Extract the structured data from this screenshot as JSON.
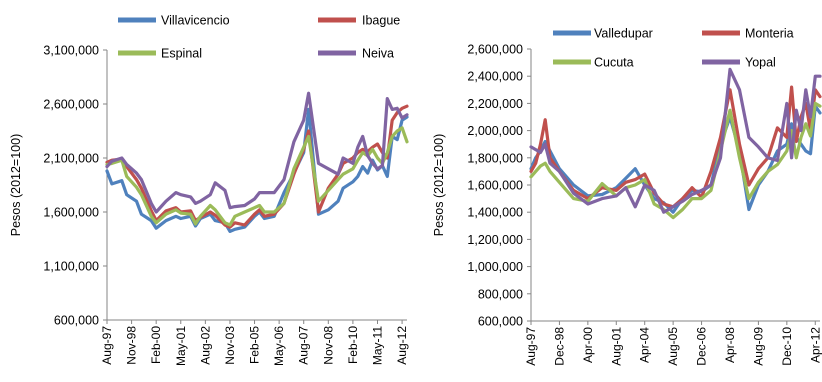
{
  "chart_data": [
    {
      "type": "line",
      "ylabel": "Pesos (2012=100)",
      "xlabel": "",
      "ylim": [
        600000,
        3100000
      ],
      "yticks": [
        600000,
        1100000,
        1600000,
        2100000,
        2600000,
        3100000
      ],
      "ytick_labels": [
        "600,000",
        "1,100,000",
        "1,600,000",
        "2,100,000",
        "2,600,000",
        "3,100,000"
      ],
      "xlim": [
        0,
        61
      ],
      "xtick_positions": [
        0,
        5,
        10,
        15,
        20,
        25,
        30,
        35,
        40,
        45,
        50,
        55,
        60
      ],
      "xtick_labels": [
        "Aug-97",
        "Nov-98",
        "Feb-00",
        "May-01",
        "Aug-02",
        "Nov-03",
        "Feb-05",
        "May-06",
        "Aug-07",
        "Nov-08",
        "Feb-10",
        "May-11",
        "Aug-12"
      ],
      "legend_position": "top",
      "series": [
        {
          "name": "Villavicencio",
          "color": "#4f81bd",
          "x": [
            0,
            1,
            3,
            4,
            6,
            7,
            9,
            10,
            12,
            14,
            15,
            17,
            18,
            19,
            21,
            22,
            24,
            25,
            26,
            28,
            30,
            31,
            32,
            34,
            36,
            38,
            40,
            41,
            43,
            45,
            47,
            48,
            50,
            51,
            52,
            53,
            54,
            55,
            56,
            57,
            58,
            59,
            60,
            61
          ],
          "y": [
            1980000,
            1860000,
            1890000,
            1760000,
            1700000,
            1580000,
            1520000,
            1450000,
            1520000,
            1560000,
            1540000,
            1560000,
            1470000,
            1540000,
            1580000,
            1520000,
            1500000,
            1420000,
            1440000,
            1460000,
            1560000,
            1600000,
            1540000,
            1560000,
            1780000,
            1960000,
            2150000,
            2550000,
            1580000,
            1620000,
            1700000,
            1820000,
            1880000,
            1930000,
            2020000,
            1960000,
            2080000,
            1990000,
            2030000,
            1930000,
            2300000,
            2270000,
            2450000,
            2480000
          ]
        },
        {
          "name": "Ibague",
          "color": "#c0504d",
          "x": [
            0,
            1,
            3,
            4,
            6,
            7,
            9,
            10,
            12,
            14,
            15,
            17,
            18,
            19,
            21,
            22,
            24,
            25,
            26,
            28,
            30,
            31,
            32,
            34,
            36,
            38,
            40,
            41,
            43,
            45,
            47,
            48,
            50,
            51,
            52,
            53,
            54,
            55,
            56,
            57,
            58,
            59,
            60,
            61
          ],
          "y": [
            2060000,
            2080000,
            2090000,
            2020000,
            1900000,
            1820000,
            1610000,
            1520000,
            1610000,
            1640000,
            1600000,
            1610000,
            1520000,
            1550000,
            1600000,
            1570000,
            1480000,
            1460000,
            1500000,
            1480000,
            1580000,
            1620000,
            1560000,
            1580000,
            1680000,
            1950000,
            2180000,
            2350000,
            1600000,
            1820000,
            1950000,
            2050000,
            2100000,
            2150000,
            2180000,
            2160000,
            2200000,
            2230000,
            2150000,
            2100000,
            2450000,
            2520000,
            2560000,
            2580000
          ]
        },
        {
          "name": "Espinal",
          "color": "#9bbb59",
          "x": [
            0,
            1,
            3,
            4,
            6,
            7,
            9,
            10,
            12,
            14,
            15,
            17,
            18,
            19,
            21,
            22,
            24,
            25,
            26,
            28,
            30,
            31,
            32,
            34,
            36,
            38,
            40,
            41,
            43,
            45,
            47,
            48,
            50,
            51,
            52,
            53,
            54,
            55,
            56,
            57,
            58,
            59,
            60,
            61
          ],
          "y": [
            2040000,
            2050000,
            2080000,
            1930000,
            1830000,
            1760000,
            1560000,
            1500000,
            1580000,
            1620000,
            1590000,
            1580000,
            1490000,
            1560000,
            1660000,
            1620000,
            1500000,
            1480000,
            1560000,
            1600000,
            1640000,
            1660000,
            1600000,
            1600000,
            1680000,
            2000000,
            2200000,
            2300000,
            1700000,
            1800000,
            1900000,
            1950000,
            2000000,
            2080000,
            2150000,
            2120000,
            2180000,
            2100000,
            2050000,
            2150000,
            2300000,
            2350000,
            2380000,
            2250000
          ]
        },
        {
          "name": "Neiva",
          "color": "#8064a2",
          "x": [
            0,
            1,
            3,
            4,
            6,
            7,
            9,
            10,
            12,
            14,
            15,
            17,
            18,
            19,
            21,
            22,
            24,
            25,
            26,
            28,
            30,
            31,
            32,
            34,
            36,
            38,
            40,
            41,
            43,
            45,
            47,
            48,
            50,
            51,
            52,
            53,
            54,
            55,
            56,
            57,
            58,
            59,
            60,
            61
          ],
          "y": [
            2020000,
            2070000,
            2100000,
            2040000,
            1960000,
            1900000,
            1680000,
            1600000,
            1700000,
            1780000,
            1760000,
            1740000,
            1680000,
            1700000,
            1760000,
            1870000,
            1800000,
            1640000,
            1650000,
            1660000,
            1720000,
            1780000,
            1780000,
            1780000,
            1900000,
            2250000,
            2450000,
            2700000,
            2050000,
            2000000,
            1950000,
            2100000,
            2050000,
            2200000,
            2300000,
            2120000,
            2050000,
            2000000,
            2030000,
            2650000,
            2550000,
            2560000,
            2470000,
            2500000
          ]
        }
      ]
    },
    {
      "type": "line",
      "ylabel": "Pesos (2012=100)",
      "xlabel": "",
      "ylim": [
        600000,
        2600000
      ],
      "yticks": [
        600000,
        800000,
        1000000,
        1200000,
        1400000,
        1600000,
        1800000,
        2000000,
        2200000,
        2400000,
        2600000
      ],
      "ytick_labels": [
        "600,000",
        "800,000",
        "1,000,000",
        "1,200,000",
        "1,400,000",
        "1,600,000",
        "1,800,000",
        "2,000,000",
        "2,200,000",
        "2,400,000",
        "2,600,000"
      ],
      "xlim": [
        0,
        61
      ],
      "xtick_positions": [
        0,
        6,
        12,
        18,
        24,
        30,
        36,
        42,
        48,
        54,
        60
      ],
      "xtick_labels": [
        "Aug-97",
        "Dec-98",
        "Apr-00",
        "Aug-01",
        "Apr-04",
        "Aug-05",
        "Dec-06",
        "Apr-08",
        "Aug-09",
        "Dec-10",
        "Apr-12"
      ],
      "legend_position": "top",
      "series": [
        {
          "name": "Valledupar",
          "color": "#4f81bd",
          "x": [
            0,
            1,
            2,
            3,
            4,
            6,
            9,
            12,
            15,
            18,
            20,
            22,
            24,
            26,
            28,
            30,
            32,
            34,
            36,
            38,
            40,
            42,
            44,
            46,
            48,
            50,
            52,
            54,
            55,
            56,
            57,
            58,
            59,
            60,
            61
          ],
          "y": [
            1720000,
            1800000,
            1850000,
            1920000,
            1850000,
            1720000,
            1600000,
            1520000,
            1530000,
            1580000,
            1650000,
            1720000,
            1600000,
            1500000,
            1470000,
            1400000,
            1500000,
            1560000,
            1550000,
            1600000,
            1900000,
            2100000,
            1850000,
            1420000,
            1600000,
            1700000,
            1850000,
            1900000,
            2050000,
            1950000,
            1900000,
            1850000,
            1830000,
            2180000,
            2130000
          ]
        },
        {
          "name": "Monteria",
          "color": "#c0504d",
          "x": [
            0,
            1,
            2,
            3,
            4,
            6,
            9,
            12,
            15,
            18,
            20,
            22,
            24,
            26,
            28,
            30,
            32,
            34,
            36,
            38,
            40,
            42,
            44,
            46,
            48,
            50,
            52,
            54,
            55,
            56,
            57,
            58,
            59,
            60,
            61
          ],
          "y": [
            1700000,
            1760000,
            1900000,
            2080000,
            1800000,
            1700000,
            1560000,
            1500000,
            1580000,
            1560000,
            1620000,
            1640000,
            1680000,
            1540000,
            1460000,
            1440000,
            1500000,
            1580000,
            1510000,
            1700000,
            1950000,
            2300000,
            1900000,
            1600000,
            1720000,
            1800000,
            2020000,
            1950000,
            2320000,
            1920000,
            2100000,
            2200000,
            2000000,
            2300000,
            2250000
          ]
        },
        {
          "name": "Cucuta",
          "color": "#9bbb59",
          "x": [
            0,
            1,
            2,
            3,
            4,
            6,
            9,
            12,
            15,
            18,
            20,
            22,
            24,
            26,
            28,
            30,
            32,
            34,
            36,
            38,
            40,
            42,
            44,
            46,
            48,
            50,
            52,
            54,
            55,
            56,
            57,
            58,
            59,
            60,
            61
          ],
          "y": [
            1660000,
            1700000,
            1740000,
            1760000,
            1700000,
            1620000,
            1500000,
            1480000,
            1610000,
            1520000,
            1580000,
            1600000,
            1640000,
            1460000,
            1420000,
            1360000,
            1420000,
            1500000,
            1500000,
            1560000,
            1850000,
            2150000,
            1800000,
            1500000,
            1620000,
            1700000,
            1750000,
            1850000,
            2000000,
            1800000,
            1950000,
            2050000,
            1960000,
            2200000,
            2180000
          ]
        },
        {
          "name": "Yopal",
          "color": "#8064a2",
          "x": [
            0,
            1,
            2,
            3,
            4,
            6,
            9,
            12,
            15,
            18,
            20,
            22,
            24,
            26,
            28,
            30,
            32,
            34,
            36,
            38,
            40,
            42,
            44,
            46,
            48,
            50,
            52,
            54,
            55,
            56,
            57,
            58,
            59,
            60,
            61
          ],
          "y": [
            1880000,
            1860000,
            1840000,
            1900000,
            1760000,
            1700000,
            1540000,
            1460000,
            1500000,
            1520000,
            1580000,
            1440000,
            1600000,
            1560000,
            1400000,
            1440000,
            1480000,
            1530000,
            1560000,
            1600000,
            1800000,
            2450000,
            2300000,
            1950000,
            1880000,
            1800000,
            1780000,
            2200000,
            1800000,
            2150000,
            2000000,
            2300000,
            2100000,
            2400000,
            2400000
          ]
        }
      ]
    }
  ]
}
